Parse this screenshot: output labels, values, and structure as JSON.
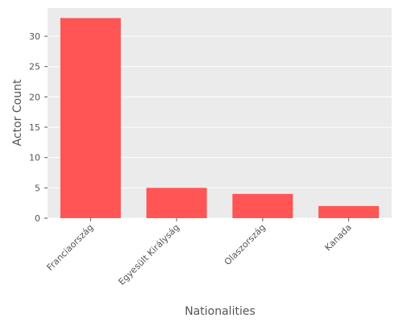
{
  "chart_data": {
    "type": "bar",
    "categories": [
      "Franciaország",
      "Egyesült Királyság",
      "Olaszország",
      "Kanada"
    ],
    "values": [
      33,
      5,
      4,
      2
    ],
    "title": "",
    "xlabel": "Nationalities",
    "ylabel": "Actor Count",
    "ylim": [
      0,
      34.65
    ],
    "yticks": [
      0,
      5,
      10,
      15,
      20,
      25,
      30
    ],
    "grid": true,
    "bar_color": "#ff5555",
    "plot_background": "#ebebeb",
    "grid_color": "#ffffff"
  }
}
